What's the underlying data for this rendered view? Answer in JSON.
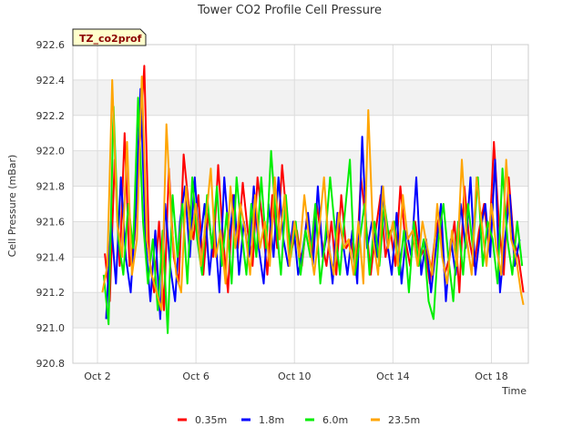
{
  "chart_data": {
    "type": "line",
    "title": "Tower CO2 Profile Cell Pressure",
    "badge": "TZ_co2prof",
    "xlabel": "Time",
    "ylabel": "Cell Pressure (mBar)",
    "xlim": [
      1.0,
      19.5
    ],
    "ylim": [
      920.8,
      922.6
    ],
    "x_ticks": [
      {
        "value": 2,
        "label": "Oct 2"
      },
      {
        "value": 6,
        "label": "Oct 6"
      },
      {
        "value": 10,
        "label": "Oct 10"
      },
      {
        "value": 14,
        "label": "Oct 14"
      },
      {
        "value": 18,
        "label": "Oct 18"
      }
    ],
    "y_ticks": [
      {
        "value": 920.8,
        "label": "920.8"
      },
      {
        "value": 921.0,
        "label": "921.0"
      },
      {
        "value": 921.2,
        "label": "921.2"
      },
      {
        "value": 921.4,
        "label": "921.4"
      },
      {
        "value": 921.6,
        "label": "921.6"
      },
      {
        "value": 921.8,
        "label": "921.8"
      },
      {
        "value": 922.0,
        "label": "922.0"
      },
      {
        "value": 922.2,
        "label": "922.2"
      },
      {
        "value": 922.4,
        "label": "922.4"
      },
      {
        "value": 922.6,
        "label": "922.6"
      }
    ],
    "grid": true,
    "legend_position": "bottom",
    "colors": {
      "band": "#f2f2f2",
      "grid": "#dddddd",
      "badge_fill": "#ffffcc"
    },
    "series": [
      {
        "name": "0.35m",
        "color": "#ff0000",
        "x": [
          2.3,
          2.5,
          2.7,
          2.9,
          3.1,
          3.3,
          3.5,
          3.7,
          3.9,
          4.1,
          4.3,
          4.5,
          4.7,
          4.9,
          5.1,
          5.3,
          5.5,
          5.7,
          5.9,
          6.1,
          6.3,
          6.5,
          6.7,
          6.9,
          7.1,
          7.3,
          7.5,
          7.7,
          7.9,
          8.1,
          8.3,
          8.5,
          8.7,
          8.9,
          9.1,
          9.3,
          9.5,
          9.7,
          9.9,
          10.1,
          10.3,
          10.5,
          10.7,
          10.9,
          11.1,
          11.3,
          11.5,
          11.7,
          11.9,
          12.1,
          12.3,
          12.5,
          12.7,
          12.9,
          13.1,
          13.3,
          13.5,
          13.7,
          13.9,
          14.1,
          14.3,
          14.5,
          14.7,
          14.9,
          15.1,
          15.3,
          15.5,
          15.7,
          15.9,
          16.1,
          16.3,
          16.5,
          16.7,
          16.9,
          17.1,
          17.3,
          17.5,
          17.7,
          17.9,
          18.1,
          18.3,
          18.5,
          18.7,
          18.9,
          19.1,
          19.3
        ],
        "y": [
          921.42,
          921.15,
          921.95,
          921.35,
          922.1,
          921.35,
          921.5,
          922.0,
          922.48,
          921.4,
          921.2,
          921.6,
          921.1,
          921.9,
          921.4,
          921.25,
          921.98,
          921.7,
          921.5,
          921.75,
          921.3,
          921.65,
          921.4,
          921.92,
          921.5,
          921.2,
          921.75,
          921.45,
          921.82,
          921.55,
          921.35,
          921.85,
          921.6,
          921.3,
          921.75,
          921.45,
          921.92,
          921.6,
          921.45,
          921.55,
          921.35,
          921.62,
          921.4,
          921.7,
          921.5,
          921.35,
          921.6,
          921.3,
          921.75,
          921.45,
          921.5,
          921.3,
          921.85,
          921.6,
          921.3,
          921.55,
          921.75,
          921.4,
          921.55,
          921.35,
          921.8,
          921.5,
          921.35,
          921.6,
          921.4,
          921.45,
          921.25,
          921.5,
          921.65,
          921.3,
          921.4,
          921.6,
          921.2,
          921.8,
          921.5,
          921.35,
          921.55,
          921.7,
          921.45,
          922.05,
          921.6,
          921.3,
          921.85,
          921.5,
          921.4,
          921.2
        ]
      },
      {
        "name": "1.8m",
        "color": "#0000ff",
        "x": [
          2.35,
          2.55,
          2.75,
          2.95,
          3.15,
          3.35,
          3.55,
          3.75,
          3.95,
          4.15,
          4.35,
          4.55,
          4.75,
          4.95,
          5.15,
          5.35,
          5.55,
          5.75,
          5.95,
          6.15,
          6.35,
          6.55,
          6.75,
          6.95,
          7.15,
          7.35,
          7.55,
          7.75,
          7.95,
          8.15,
          8.35,
          8.55,
          8.75,
          8.95,
          9.15,
          9.35,
          9.55,
          9.75,
          9.95,
          10.15,
          10.35,
          10.55,
          10.75,
          10.95,
          11.15,
          11.35,
          11.55,
          11.75,
          11.95,
          12.15,
          12.35,
          12.55,
          12.75,
          12.95,
          13.15,
          13.35,
          13.55,
          13.75,
          13.95,
          14.15,
          14.35,
          14.55,
          14.75,
          14.95,
          15.15,
          15.35,
          15.55,
          15.75,
          15.95,
          16.15,
          16.35,
          16.55,
          16.75,
          16.95,
          17.15,
          17.35,
          17.55,
          17.75,
          17.95,
          18.15,
          18.35,
          18.55,
          18.75,
          18.95,
          19.15
        ],
        "y": [
          921.05,
          921.6,
          921.25,
          921.85,
          921.4,
          921.2,
          921.65,
          922.35,
          921.5,
          921.15,
          921.55,
          921.05,
          921.7,
          921.35,
          921.15,
          921.6,
          921.8,
          921.4,
          921.85,
          921.45,
          921.7,
          921.3,
          921.6,
          921.2,
          921.85,
          921.5,
          921.75,
          921.3,
          921.6,
          921.4,
          921.8,
          921.45,
          921.25,
          921.7,
          921.4,
          921.85,
          921.5,
          921.35,
          921.6,
          921.3,
          921.45,
          921.65,
          921.35,
          921.8,
          921.4,
          921.55,
          921.25,
          921.65,
          921.5,
          921.3,
          921.55,
          921.25,
          922.08,
          921.45,
          921.6,
          921.4,
          921.8,
          921.5,
          921.3,
          921.65,
          921.25,
          921.55,
          921.4,
          921.85,
          921.3,
          921.5,
          921.2,
          921.45,
          921.7,
          921.15,
          921.5,
          921.3,
          921.7,
          921.45,
          921.85,
          921.3,
          921.55,
          921.7,
          921.4,
          921.95,
          921.2,
          921.5,
          921.75,
          921.35,
          921.5
        ]
      },
      {
        "name": "6.0m",
        "color": "#00ee00",
        "x": [
          2.25,
          2.45,
          2.65,
          2.85,
          3.05,
          3.25,
          3.45,
          3.65,
          3.85,
          4.05,
          4.25,
          4.45,
          4.65,
          4.85,
          5.05,
          5.25,
          5.45,
          5.65,
          5.85,
          6.05,
          6.25,
          6.45,
          6.65,
          6.85,
          7.05,
          7.25,
          7.45,
          7.65,
          7.85,
          8.05,
          8.25,
          8.45,
          8.65,
          8.85,
          9.05,
          9.25,
          9.45,
          9.65,
          9.85,
          10.05,
          10.25,
          10.45,
          10.65,
          10.85,
          11.05,
          11.25,
          11.45,
          11.65,
          11.85,
          12.05,
          12.25,
          12.45,
          12.65,
          12.85,
          13.05,
          13.25,
          13.45,
          13.65,
          13.85,
          14.05,
          14.25,
          14.45,
          14.65,
          14.85,
          15.05,
          15.25,
          15.45,
          15.65,
          15.85,
          16.05,
          16.25,
          16.45,
          16.65,
          16.85,
          17.05,
          17.25,
          17.45,
          17.65,
          17.85,
          18.05,
          18.25,
          18.45,
          18.65,
          18.85,
          19.05,
          19.25
        ],
        "y": [
          921.3,
          921.02,
          922.25,
          921.5,
          921.3,
          921.7,
          921.45,
          922.3,
          921.6,
          921.25,
          921.5,
          921.1,
          921.55,
          920.97,
          921.75,
          921.4,
          921.7,
          921.25,
          921.85,
          921.5,
          921.3,
          921.75,
          921.45,
          921.8,
          921.35,
          921.65,
          921.25,
          921.85,
          921.55,
          921.3,
          921.7,
          921.4,
          921.85,
          921.45,
          922.0,
          921.6,
          921.3,
          921.75,
          921.4,
          921.6,
          921.3,
          921.55,
          921.4,
          921.7,
          921.25,
          921.5,
          921.85,
          921.55,
          921.3,
          921.65,
          921.95,
          921.3,
          921.5,
          921.7,
          921.3,
          921.6,
          921.35,
          921.7,
          921.5,
          921.6,
          921.3,
          921.55,
          921.2,
          921.6,
          921.35,
          921.5,
          921.15,
          921.05,
          921.5,
          921.7,
          921.4,
          921.15,
          921.6,
          921.3,
          921.7,
          921.45,
          921.85,
          921.35,
          921.6,
          921.5,
          921.25,
          921.9,
          921.5,
          921.3,
          921.6,
          921.35
        ]
      },
      {
        "name": "23.5m",
        "color": "#ffa500",
        "x": [
          2.2,
          2.4,
          2.6,
          2.8,
          3.0,
          3.2,
          3.4,
          3.6,
          3.8,
          4.0,
          4.2,
          4.4,
          4.6,
          4.8,
          5.0,
          5.2,
          5.4,
          5.6,
          5.8,
          6.0,
          6.2,
          6.4,
          6.6,
          6.8,
          7.0,
          7.2,
          7.4,
          7.6,
          7.8,
          8.0,
          8.2,
          8.4,
          8.6,
          8.8,
          9.0,
          9.2,
          9.4,
          9.6,
          9.8,
          10.0,
          10.2,
          10.4,
          10.6,
          10.8,
          11.0,
          11.2,
          11.4,
          11.6,
          11.8,
          12.0,
          12.2,
          12.4,
          12.6,
          12.8,
          13.0,
          13.2,
          13.4,
          13.6,
          13.8,
          14.0,
          14.2,
          14.4,
          14.6,
          14.8,
          15.0,
          15.2,
          15.4,
          15.6,
          15.8,
          16.0,
          16.2,
          16.4,
          16.6,
          16.8,
          17.0,
          17.2,
          17.4,
          17.6,
          17.8,
          18.0,
          18.2,
          18.4,
          18.6,
          18.8,
          19.0,
          19.2,
          19.3
        ],
        "y": [
          921.2,
          921.35,
          922.4,
          921.6,
          921.4,
          922.05,
          921.3,
          921.5,
          922.42,
          921.5,
          921.3,
          921.2,
          921.1,
          922.15,
          921.6,
          921.3,
          921.2,
          921.8,
          921.5,
          921.7,
          921.35,
          921.6,
          921.9,
          921.4,
          921.55,
          921.25,
          921.8,
          921.45,
          921.7,
          921.55,
          921.3,
          921.75,
          921.45,
          921.6,
          921.35,
          921.85,
          921.5,
          921.75,
          921.35,
          921.6,
          921.4,
          921.75,
          921.5,
          921.3,
          921.55,
          921.85,
          921.45,
          921.3,
          921.65,
          921.45,
          921.5,
          921.3,
          921.6,
          921.25,
          922.23,
          921.5,
          921.3,
          921.8,
          921.45,
          921.6,
          921.35,
          921.75,
          921.5,
          921.55,
          921.35,
          921.6,
          921.45,
          921.3,
          921.7,
          921.4,
          921.25,
          921.55,
          921.35,
          921.95,
          921.5,
          921.3,
          921.85,
          921.6,
          921.35,
          921.7,
          921.45,
          921.3,
          921.95,
          921.5,
          921.4,
          921.2,
          921.13
        ]
      }
    ]
  }
}
